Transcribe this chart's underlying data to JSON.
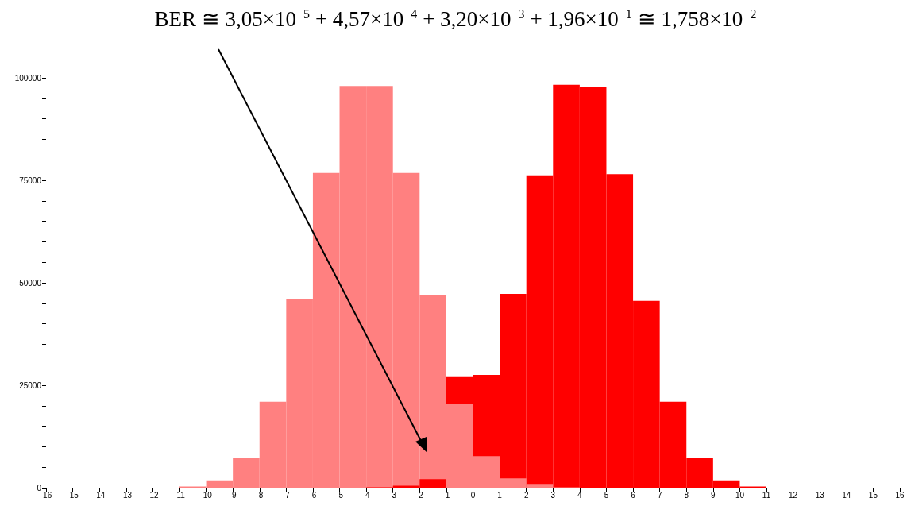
{
  "chart_data": {
    "type": "histogram",
    "title": "BER ≅ 3,05×10$^{−5}$ + 4,57×10$^{−4}$ + 3,20×10$^{−3}$ + 1,96×10$^{−1}$ ≅ 1,758×10$^{−2}$",
    "bins": [
      -11,
      -10,
      -9,
      -8,
      -7,
      -6,
      -5,
      -4,
      -3,
      -2,
      -1,
      0,
      1,
      2,
      3,
      4,
      5,
      6,
      7,
      8,
      9,
      10,
      11
    ],
    "series": [
      {
        "color": "#ff8080",
        "values": [
          300,
          1800,
          7300,
          21000,
          46000,
          76800,
          98000,
          98000,
          76800,
          47000,
          20500,
          7700,
          2300,
          900,
          100,
          0,
          0,
          0,
          0,
          0,
          0,
          0
        ]
      },
      {
        "color": "#ff0000",
        "values": [
          0,
          0,
          0,
          0,
          0,
          0,
          0,
          100,
          500,
          2100,
          27200,
          27500,
          47300,
          76200,
          98300,
          97800,
          76500,
          45600,
          21000,
          7300,
          1800,
          300
        ]
      }
    ],
    "xlim": [
      -16,
      16
    ],
    "xticks": [
      -16,
      -15,
      -14,
      -13,
      -12,
      -11,
      -10,
      -9,
      -8,
      -7,
      -6,
      -5,
      -4,
      -3,
      -2,
      -1,
      0,
      1,
      2,
      3,
      4,
      5,
      6,
      7,
      8,
      9,
      10,
      11,
      12,
      13,
      14,
      15,
      16
    ],
    "ylim": [
      0,
      100000
    ],
    "yticks": [
      0,
      {
        "value": 5000,
        "label": null
      },
      {
        "value": 10000,
        "label": null
      },
      {
        "value": 15000,
        "label": null
      },
      {
        "value": 20000,
        "label": null
      },
      25000,
      {
        "value": 30000,
        "label": null
      },
      {
        "value": 35000,
        "label": null
      },
      {
        "value": 40000,
        "label": null
      },
      {
        "value": 45000,
        "label": null
      },
      50000,
      {
        "value": 55000,
        "label": null
      },
      {
        "value": 60000,
        "label": null
      },
      {
        "value": 65000,
        "label": null
      },
      {
        "value": 70000,
        "label": null
      },
      75000,
      {
        "value": 80000,
        "label": null
      },
      {
        "value": 85000,
        "label": null
      },
      {
        "value": 90000,
        "label": null
      },
      {
        "value": 95000,
        "label": null
      },
      100000
    ],
    "grid": false
  }
}
